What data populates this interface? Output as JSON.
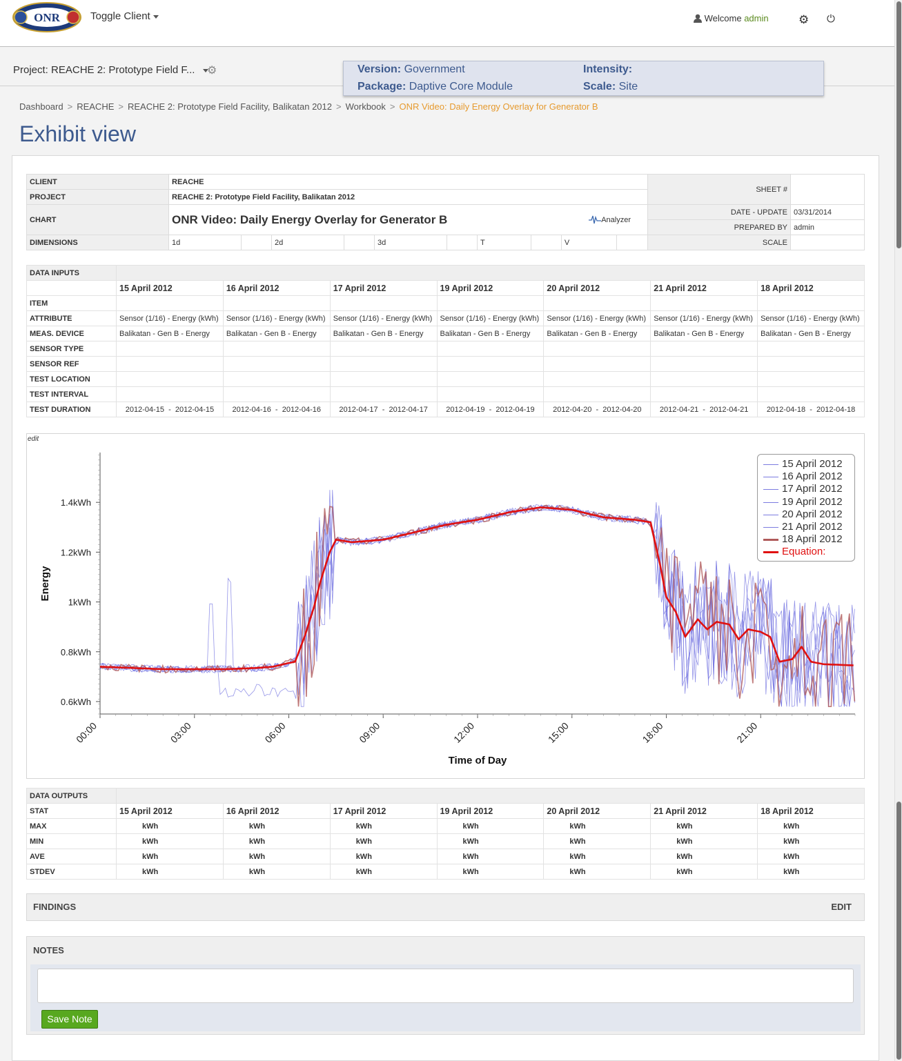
{
  "header": {
    "logo_text": "ONR",
    "toggle_client": "Toggle Client",
    "welcome_prefix": "Welcome",
    "user": "admin"
  },
  "projectbar": {
    "project": "Project: REACHE 2: Prototype Field F...",
    "version_label": "Version:",
    "version": "Government",
    "package_label": "Package:",
    "package": "Daptive Core Module",
    "intensity_label": "Intensity:",
    "scale_label": "Scale:",
    "scale": "Site"
  },
  "breadcrumb": [
    "Dashboard",
    "REACHE",
    "REACHE 2: Prototype Field Facility, Balikatan 2012",
    "Workbook",
    "ONR Video: Daily Energy Overlay for Generator B"
  ],
  "page_title": "Exhibit view",
  "info": {
    "client_label": "CLIENT",
    "client": "REACHE",
    "project_label": "PROJECT",
    "project": "REACHE 2: Prototype Field Facility, Balikatan 2012",
    "chart_label": "CHART",
    "chart": "ONR Video: Daily Energy Overlay for Generator B",
    "analyzer": "Analyzer",
    "dimensions_label": "DIMENSIONS",
    "dims": [
      "1d",
      "",
      "2d",
      "",
      "3d",
      "",
      "T",
      "",
      "V",
      ""
    ],
    "sheet_label": "SHEET #",
    "sheet": "",
    "date_label": "DATE - UPDATE",
    "date": "03/31/2014",
    "prepared_label": "PREPARED BY",
    "prepared": "admin",
    "scale_label": "SCALE",
    "scale": ""
  },
  "inputs": {
    "title": "DATA INPUTS",
    "dates": [
      "15 April 2012",
      "16 April 2012",
      "17 April 2012",
      "19 April 2012",
      "20 April 2012",
      "21 April 2012",
      "18 April 2012"
    ],
    "rows": [
      "ITEM",
      "ATTRIBUTE",
      "MEAS. DEVICE",
      "SENSOR TYPE",
      "SENSOR REF",
      "TEST LOCATION",
      "TEST INTERVAL",
      "TEST DURATION"
    ],
    "attribute": "Sensor (1/16) - Energy (kWh)",
    "device": "Balikatan - Gen B - Energy",
    "durations": [
      "2012-04-15  -  2012-04-15",
      "2012-04-16  -  2012-04-16",
      "2012-04-17  -  2012-04-17",
      "2012-04-19  -  2012-04-19",
      "2012-04-20  -  2012-04-20",
      "2012-04-21  -  2012-04-21",
      "2012-04-18  -  2012-04-18"
    ]
  },
  "chart_edit": "edit",
  "chart_data": {
    "type": "line",
    "title": "",
    "xlabel": "Time of Day",
    "ylabel": "Energy",
    "x_ticks": [
      "00:00",
      "03:00",
      "06:00",
      "09:00",
      "12:00",
      "15:00",
      "18:00",
      "21:00"
    ],
    "y_ticks": [
      "0.6kWh",
      "0.8kWh",
      "1kWh",
      "1.2kWh",
      "1.4kWh"
    ],
    "ylim": [
      0.55,
      1.6
    ],
    "xlim": [
      0,
      24
    ],
    "grid": false,
    "legend_position": "top-right",
    "series": [
      {
        "name": "15 April 2012",
        "color": "#7070e0"
      },
      {
        "name": "16 April 2012",
        "color": "#7070e0"
      },
      {
        "name": "17 April 2012",
        "color": "#7070e0"
      },
      {
        "name": "19 April 2012",
        "color": "#7070e0"
      },
      {
        "name": "20 April 2012",
        "color": "#7070e0"
      },
      {
        "name": "21 April 2012",
        "color": "#7070e0"
      },
      {
        "name": "18 April 2012",
        "color": "#b05a5a"
      },
      {
        "name": "Equation:",
        "color": "#e01010"
      }
    ],
    "equation": {
      "x": [
        0,
        1,
        2,
        3,
        4,
        5,
        5.5,
        6,
        6.2,
        6.5,
        6.8,
        7,
        7.3,
        7.5,
        8,
        9,
        10,
        11,
        12,
        13,
        14,
        15,
        16,
        17,
        17.5,
        17.8,
        18,
        18.3,
        18.6,
        19,
        19.3,
        19.6,
        20,
        20.3,
        20.6,
        21,
        21.3,
        21.6,
        22,
        22.3,
        22.6,
        23,
        24
      ],
      "y": [
        0.74,
        0.735,
        0.73,
        0.73,
        0.73,
        0.735,
        0.74,
        0.755,
        0.76,
        0.86,
        0.98,
        1.08,
        1.2,
        1.25,
        1.24,
        1.25,
        1.28,
        1.31,
        1.33,
        1.36,
        1.38,
        1.37,
        1.34,
        1.33,
        1.32,
        1.15,
        1.02,
        0.96,
        0.86,
        0.93,
        0.89,
        0.92,
        0.91,
        0.85,
        0.89,
        0.88,
        0.86,
        0.76,
        0.77,
        0.82,
        0.76,
        0.75,
        0.745
      ]
    }
  },
  "outputs": {
    "title": "DATA OUTPUTS",
    "stat_label": "STAT",
    "stats": [
      "MAX",
      "MIN",
      "AVE",
      "STDEV"
    ],
    "unit": "kWh"
  },
  "findings": {
    "label": "FINDINGS",
    "edit": "EDIT"
  },
  "notes": {
    "label": "NOTES",
    "value": "",
    "save": "Save Note"
  }
}
